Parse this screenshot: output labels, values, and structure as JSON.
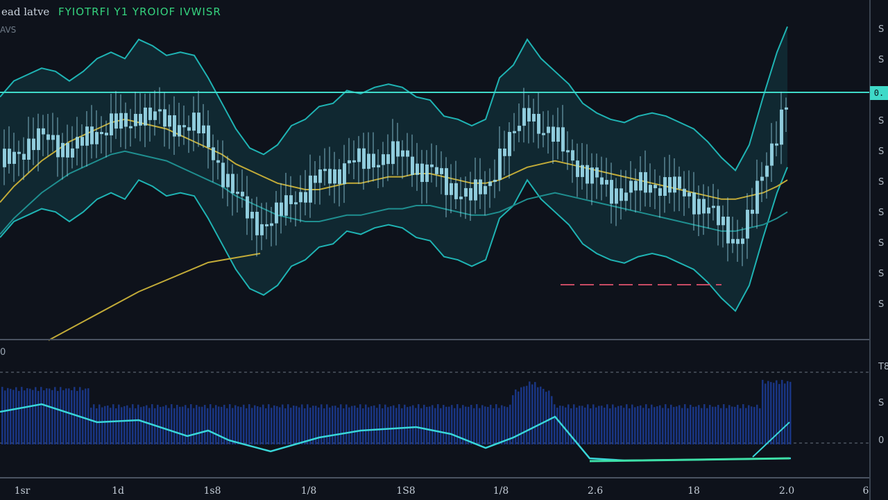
{
  "header": {
    "title_left": "ead latve",
    "title_right": "FYIOTRFI Y1 YROIOF IVWISR",
    "small_tag": "AVS"
  },
  "price_axis": {
    "labels": [
      "S",
      "S",
      "S",
      "S",
      "S",
      "S",
      "S",
      "S",
      "S",
      "S"
    ],
    "last_value": "0."
  },
  "indicator_axis": {
    "labels": [
      "T8",
      "S",
      "0"
    ],
    "panel_label": "0"
  },
  "time_axis": {
    "labels": [
      "1sr",
      "1d",
      "1s8",
      "1/8",
      "1S8",
      "1/8",
      "2.6",
      "18",
      "2.0",
      "6"
    ]
  },
  "colors": {
    "background": "#0e121b",
    "band_fill": "#123039",
    "band_line": "#1fb4b4",
    "candle": "#9ad8ea",
    "ma_yellow": "#c2ab38",
    "ma_teal": "#1f8f90",
    "horizontal_level": "#3fd9c8",
    "histogram": "#1b3a8f",
    "oscillator": "#39d7d9",
    "oscillator_flat": "#3ee0a8",
    "dashed_red": "#c74b63"
  },
  "chart_data": {
    "type": "line",
    "title": "ead latve FYIOTRFI Y1 YROIOF IVWISR",
    "x": [
      0,
      20,
      40,
      60,
      80,
      100,
      120,
      140,
      160,
      180,
      200,
      220,
      240,
      260,
      280,
      300,
      320,
      340,
      360,
      380,
      400,
      420,
      440,
      460,
      480,
      500,
      520,
      540,
      560,
      580,
      600,
      620,
      640,
      660,
      680,
      700,
      720,
      740,
      760,
      780,
      800,
      820,
      840,
      860,
      880,
      900,
      920,
      940,
      960,
      980,
      1000,
      1020,
      1040,
      1060,
      1080,
      1100,
      1120,
      1135
    ],
    "series": [
      {
        "values": [
          52,
          57,
          59,
          61,
          60,
          57,
          60,
          64,
          66,
          64,
          70,
          68,
          65,
          66,
          65,
          58,
          50,
          42,
          36,
          34,
          37,
          43,
          45,
          49,
          50,
          54,
          53,
          55,
          56,
          55,
          52,
          51,
          46,
          45,
          43,
          45,
          58,
          62,
          70,
          64,
          60,
          56,
          50,
          47,
          45,
          44,
          46,
          47,
          46,
          44,
          42,
          38,
          33,
          29,
          37,
          52,
          66,
          74
        ]
      },
      {
        "values": [
          41,
          46,
          50,
          54,
          57,
          60,
          62,
          64,
          66,
          67,
          66,
          65,
          64,
          62,
          60,
          58,
          56,
          53,
          51,
          49,
          47,
          46,
          45,
          45,
          46,
          47,
          47,
          48,
          49,
          49,
          50,
          50,
          49,
          48,
          47,
          47,
          48,
          50,
          52,
          53,
          54,
          53,
          52,
          51,
          50,
          49,
          48,
          47,
          46,
          45,
          44,
          43,
          42,
          42,
          43,
          44,
          46,
          48
        ]
      }
    ],
    "ylim": [
      0,
      100
    ],
    "xlabel": "",
    "ylabel": "",
    "grid": false
  }
}
